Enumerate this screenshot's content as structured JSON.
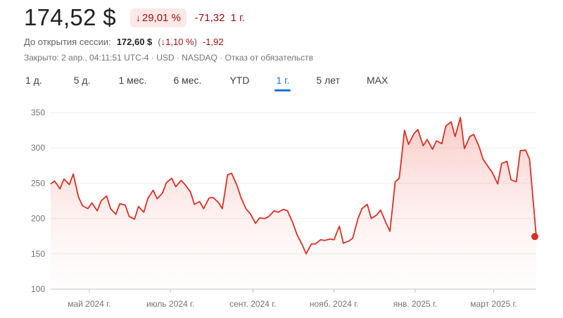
{
  "quote": {
    "price": "174,52 $",
    "change_pct": "29,01 %",
    "change_abs": "-71,32",
    "period": "1 г."
  },
  "premarket": {
    "label": "До открытия сессии:",
    "price": "172,60 $",
    "change_pct": "1,10 %",
    "change_abs": "-1,92"
  },
  "status": {
    "closed": "Закрыто: 2 апр., 04:11:51 UTC-4",
    "currency": "USD",
    "exchange": "NASDAQ",
    "disclaimer": "Отказ от обязательств"
  },
  "tabs": [
    "1 д.",
    "5 д.",
    "1 мес.",
    "6 мес.",
    "YTD",
    "1 г.",
    "5 лет",
    "MAX"
  ],
  "active_tab": "1 г.",
  "colors": {
    "line": "#d93025",
    "fill": "#fce8e6",
    "down": "#a50e0e",
    "accent": "#1a73e8"
  },
  "chart_data": {
    "type": "area",
    "y_ticks": [
      "350",
      "300",
      "250",
      "200",
      "150",
      "100"
    ],
    "ylim": [
      100,
      350
    ],
    "x_ticks": [
      "май 2024 г.",
      "июль 2024 г.",
      "сент. 2024 г.",
      "нояб. 2024 г.",
      "янв. 2025 г.",
      "март 2025 г."
    ],
    "x_tick_dates": [
      "2024-05-01",
      "2024-07-01",
      "2024-09-01",
      "2024-11-01",
      "2025-01-01",
      "2025-03-01"
    ],
    "x_range": [
      "2024-04-02",
      "2025-04-02"
    ],
    "grid": true,
    "series": [
      {
        "points": [
          [
            "2024-04-02",
            249
          ],
          [
            "2024-04-05",
            253
          ],
          [
            "2024-04-09",
            242
          ],
          [
            "2024-04-12",
            256
          ],
          [
            "2024-04-16",
            248
          ],
          [
            "2024-04-19",
            263
          ],
          [
            "2024-04-23",
            230
          ],
          [
            "2024-04-26",
            218
          ],
          [
            "2024-04-30",
            214
          ],
          [
            "2024-05-03",
            222
          ],
          [
            "2024-05-07",
            211
          ],
          [
            "2024-05-10",
            225
          ],
          [
            "2024-05-14",
            232
          ],
          [
            "2024-05-17",
            214
          ],
          [
            "2024-05-21",
            206
          ],
          [
            "2024-05-24",
            221
          ],
          [
            "2024-05-28",
            219
          ],
          [
            "2024-05-31",
            203
          ],
          [
            "2024-06-04",
            199
          ],
          [
            "2024-06-07",
            217
          ],
          [
            "2024-06-11",
            209
          ],
          [
            "2024-06-14",
            228
          ],
          [
            "2024-06-18",
            240
          ],
          [
            "2024-06-21",
            228
          ],
          [
            "2024-06-25",
            236
          ],
          [
            "2024-06-28",
            251
          ],
          [
            "2024-07-02",
            257
          ],
          [
            "2024-07-05",
            245
          ],
          [
            "2024-07-09",
            254
          ],
          [
            "2024-07-12",
            248
          ],
          [
            "2024-07-16",
            238
          ],
          [
            "2024-07-19",
            220
          ],
          [
            "2024-07-23",
            224
          ],
          [
            "2024-07-26",
            214
          ],
          [
            "2024-07-30",
            229
          ],
          [
            "2024-08-02",
            230
          ],
          [
            "2024-08-06",
            223
          ],
          [
            "2024-08-09",
            214
          ],
          [
            "2024-08-13",
            262
          ],
          [
            "2024-08-16",
            264
          ],
          [
            "2024-08-20",
            247
          ],
          [
            "2024-08-23",
            230
          ],
          [
            "2024-08-27",
            213
          ],
          [
            "2024-08-30",
            207
          ],
          [
            "2024-09-03",
            193
          ],
          [
            "2024-09-06",
            201
          ],
          [
            "2024-09-10",
            200
          ],
          [
            "2024-09-13",
            203
          ],
          [
            "2024-09-17",
            211
          ],
          [
            "2024-09-20",
            209
          ],
          [
            "2024-09-24",
            213
          ],
          [
            "2024-09-27",
            211
          ],
          [
            "2024-10-01",
            194
          ],
          [
            "2024-10-04",
            178
          ],
          [
            "2024-10-08",
            163
          ],
          [
            "2024-10-11",
            150
          ],
          [
            "2024-10-15",
            164
          ],
          [
            "2024-10-18",
            164
          ],
          [
            "2024-10-22",
            170
          ],
          [
            "2024-10-25",
            169
          ],
          [
            "2024-10-29",
            171
          ],
          [
            "2024-11-01",
            170
          ],
          [
            "2024-11-05",
            189
          ],
          [
            "2024-11-08",
            165
          ],
          [
            "2024-11-12",
            168
          ],
          [
            "2024-11-15",
            172
          ],
          [
            "2024-11-19",
            200
          ],
          [
            "2024-11-22",
            214
          ],
          [
            "2024-11-26",
            220
          ],
          [
            "2024-11-29",
            200
          ],
          [
            "2024-12-03",
            205
          ],
          [
            "2024-12-06",
            212
          ],
          [
            "2024-12-10",
            194
          ],
          [
            "2024-12-13",
            182
          ],
          [
            "2024-12-17",
            252
          ],
          [
            "2024-12-20",
            257
          ],
          [
            "2024-12-24",
            325
          ],
          [
            "2024-12-27",
            305
          ],
          [
            "2024-12-31",
            320
          ],
          [
            "2025-01-03",
            326
          ],
          [
            "2025-01-07",
            303
          ],
          [
            "2025-01-10",
            312
          ],
          [
            "2025-01-14",
            298
          ],
          [
            "2025-01-17",
            310
          ],
          [
            "2025-01-21",
            306
          ],
          [
            "2025-01-24",
            331
          ],
          [
            "2025-01-28",
            337
          ],
          [
            "2025-01-31",
            316
          ],
          [
            "2025-02-04",
            343
          ],
          [
            "2025-02-07",
            299
          ],
          [
            "2025-02-11",
            316
          ],
          [
            "2025-02-14",
            319
          ],
          [
            "2025-02-18",
            302
          ],
          [
            "2025-02-21",
            284
          ],
          [
            "2025-02-25",
            273
          ],
          [
            "2025-02-28",
            265
          ],
          [
            "2025-03-04",
            249
          ],
          [
            "2025-03-07",
            278
          ],
          [
            "2025-03-11",
            281
          ],
          [
            "2025-03-14",
            255
          ],
          [
            "2025-03-18",
            252
          ],
          [
            "2025-03-21",
            296
          ],
          [
            "2025-03-25",
            297
          ],
          [
            "2025-03-28",
            284
          ]
        ]
      }
    ]
  }
}
